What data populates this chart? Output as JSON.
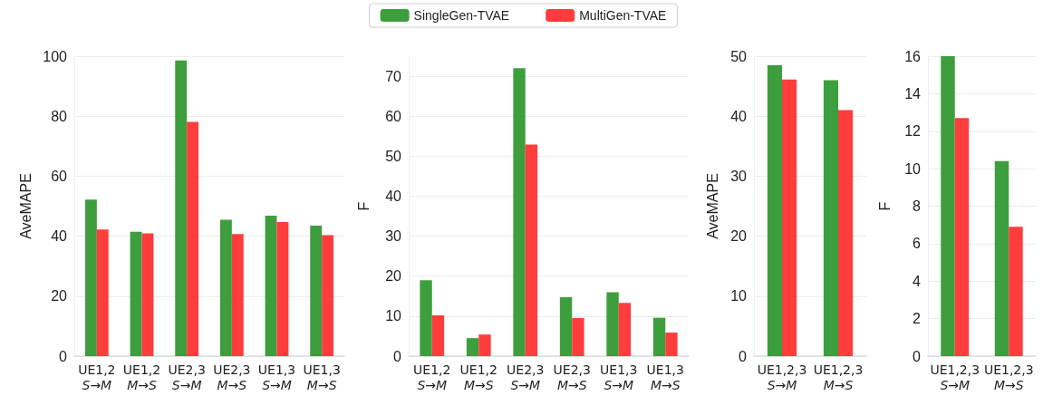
{
  "chart_data": [
    {
      "type": "bar",
      "ylabel": "AveMAPE",
      "categories": [
        "UE1,2\nS→M",
        "UE1,2\nM→S",
        "UE2,3\nS→M",
        "UE2,3\nM→S",
        "UE1,3\nS→M",
        "UE1,3\nM→S"
      ],
      "ylim": [
        0,
        100
      ],
      "yticks": [
        0,
        20,
        40,
        60,
        80,
        100
      ],
      "grid": "y",
      "legend": false,
      "series": [
        {
          "color": "#339933",
          "values": [
            52.2,
            41.5,
            98.6,
            45.5,
            46.8,
            43.5
          ]
        },
        {
          "color": "#ff3333",
          "values": [
            42.2,
            40.9,
            78.1,
            40.7,
            44.7,
            40.3
          ]
        }
      ]
    },
    {
      "type": "bar",
      "ylabel": "F",
      "categories": [
        "UE1,2\nS→M",
        "UE1,2\nM→S",
        "UE2,3\nS→M",
        "UE2,3\nM→S",
        "UE1,3\nS→M",
        "UE1,3\nM→S"
      ],
      "ylim": [
        0,
        75
      ],
      "yticks": [
        0,
        10,
        20,
        30,
        40,
        50,
        60,
        70
      ],
      "grid": "y",
      "legend": "top",
      "series": [
        {
          "name": "SingleGen-TVAE",
          "color": "#339933",
          "values": [
            19.0,
            4.5,
            72.0,
            14.7,
            16.0,
            9.6
          ]
        },
        {
          "name": "MultiGen-TVAE",
          "color": "#ff3333",
          "values": [
            10.2,
            5.4,
            52.9,
            9.5,
            13.3,
            5.9
          ]
        }
      ]
    },
    {
      "type": "bar",
      "ylabel": "AveMAPE",
      "categories": [
        "UE1,2,3\nS→M",
        "UE1,2,3\nM→S"
      ],
      "ylim": [
        0,
        50
      ],
      "yticks": [
        0,
        10,
        20,
        30,
        40,
        50
      ],
      "grid": "y",
      "legend": false,
      "series": [
        {
          "color": "#339933",
          "values": [
            48.5,
            46.0
          ]
        },
        {
          "color": "#ff3333",
          "values": [
            46.1,
            41.0
          ]
        }
      ]
    },
    {
      "type": "bar",
      "ylabel": "F",
      "categories": [
        "UE1,2,3\nS→M",
        "UE1,2,3\nM→S"
      ],
      "ylim": [
        0,
        16
      ],
      "yticks": [
        0,
        2,
        4,
        6,
        8,
        10,
        12,
        14,
        16
      ],
      "grid": "y",
      "legend": false,
      "series": [
        {
          "color": "#339933",
          "values": [
            16.0,
            10.4
          ]
        },
        {
          "color": "#ff3333",
          "values": [
            12.7,
            6.9
          ]
        }
      ]
    }
  ]
}
